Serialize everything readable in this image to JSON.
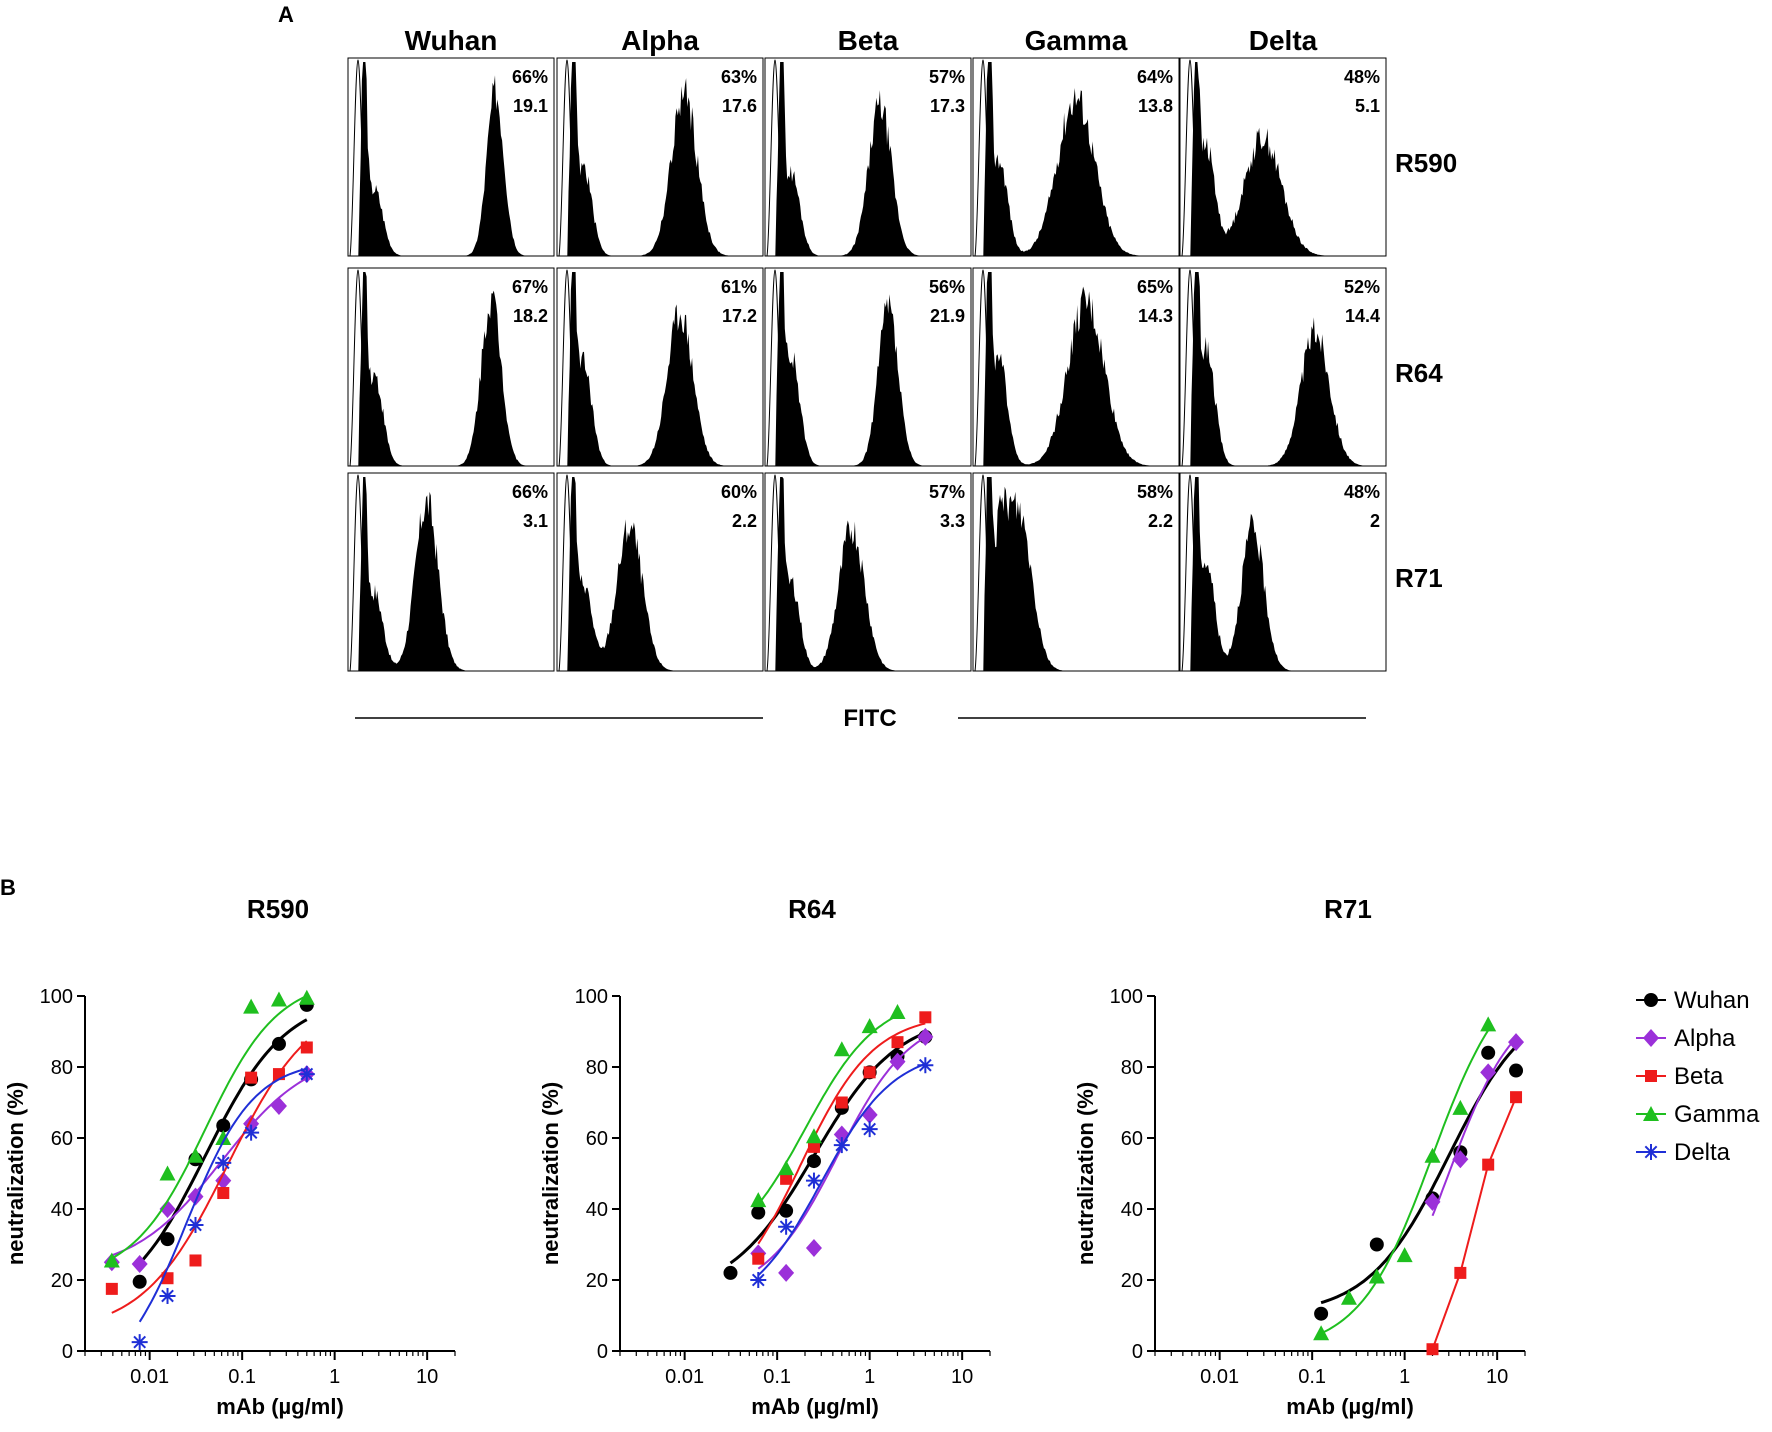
{
  "colors": {
    "Wuhan": "#000000",
    "Alpha": "#9b30d9",
    "Beta": "#ee1c1c",
    "Gamma": "#1fbf1f",
    "Delta": "#1f2fd6"
  },
  "panel_a": {
    "label": "A",
    "xlabel": "FITC",
    "variants": [
      "Wuhan",
      "Alpha",
      "Beta",
      "Gamma",
      "Delta"
    ],
    "antibodies": [
      "R590",
      "R64",
      "R71"
    ],
    "histograms": [
      [
        {
          "pct": "66%",
          "mfi": "19.1",
          "peak": 0.72,
          "h": 0.83,
          "w": 0.06,
          "n": 0.34
        },
        {
          "pct": "63%",
          "mfi": "17.6",
          "peak": 0.62,
          "h": 0.82,
          "w": 0.09,
          "n": 0.45
        },
        {
          "pct": "57%",
          "mfi": "17.3",
          "peak": 0.56,
          "h": 0.76,
          "w": 0.08,
          "n": 0.42
        },
        {
          "pct": "64%",
          "mfi": "13.8",
          "peak": 0.5,
          "h": 0.8,
          "w": 0.13,
          "n": 0.48
        },
        {
          "pct": "48%",
          "mfi": "5.1",
          "peak": 0.4,
          "h": 0.6,
          "w": 0.13,
          "n": 0.55
        }
      ],
      [
        {
          "pct": "67%",
          "mfi": "18.2",
          "peak": 0.7,
          "h": 0.85,
          "w": 0.07,
          "n": 0.46
        },
        {
          "pct": "61%",
          "mfi": "17.2",
          "peak": 0.6,
          "h": 0.77,
          "w": 0.09,
          "n": 0.52
        },
        {
          "pct": "56%",
          "mfi": "21.9",
          "peak": 0.6,
          "h": 0.8,
          "w": 0.07,
          "n": 0.55
        },
        {
          "pct": "65%",
          "mfi": "14.3",
          "peak": 0.55,
          "h": 0.82,
          "w": 0.13,
          "n": 0.52
        },
        {
          "pct": "52%",
          "mfi": "14.4",
          "peak": 0.66,
          "h": 0.68,
          "w": 0.1,
          "n": 0.6
        }
      ],
      [
        {
          "pct": "66%",
          "mfi": "3.1",
          "peak": 0.38,
          "h": 0.85,
          "w": 0.08,
          "n": 0.4
        },
        {
          "pct": "60%",
          "mfi": "2.2",
          "peak": 0.35,
          "h": 0.73,
          "w": 0.09,
          "n": 0.45
        },
        {
          "pct": "57%",
          "mfi": "3.3",
          "peak": 0.42,
          "h": 0.72,
          "w": 0.09,
          "n": 0.45
        },
        {
          "pct": "58%",
          "mfi": "2.2",
          "peak": 0.22,
          "h": 0.78,
          "w": 0.09,
          "n": 0.55
        },
        {
          "pct": "48%",
          "mfi": "2",
          "peak": 0.35,
          "h": 0.72,
          "w": 0.08,
          "n": 0.55
        }
      ]
    ]
  },
  "panel_b": {
    "label": "B",
    "legend": [
      "Wuhan",
      "Alpha",
      "Beta",
      "Gamma",
      "Delta"
    ],
    "xticks": [
      "0.01",
      "0.1",
      "1",
      "10"
    ],
    "yticks": [
      "0",
      "20",
      "40",
      "60",
      "80",
      "100"
    ]
  },
  "chart_data": [
    {
      "type": "scatter",
      "title": "R590",
      "xlabel": "mAb (µg/ml)",
      "ylabel": "neutralization (%)",
      "xscale": "log",
      "xlim": [
        0.002,
        20
      ],
      "ylim": [
        0,
        100
      ],
      "series": [
        {
          "name": "Wuhan",
          "x": [
            0.0078,
            0.0156,
            0.0313,
            0.0625,
            0.125,
            0.25,
            0.5
          ],
          "y": [
            19.5,
            31.5,
            54,
            63.5,
            76.5,
            86.5,
            97.5
          ],
          "fit": {
            "bottom": 10,
            "top": 100,
            "ec50": 0.04,
            "hill": 1.0
          }
        },
        {
          "name": "Alpha",
          "x": [
            0.0039,
            0.0078,
            0.0156,
            0.0313,
            0.0625,
            0.125,
            0.25,
            0.5
          ],
          "y": [
            25,
            24.5,
            40,
            43.5,
            48,
            64,
            69,
            78
          ],
          "fit": {
            "bottom": 22,
            "top": 85,
            "ec50": 0.06,
            "hill": 0.9
          }
        },
        {
          "name": "Beta",
          "x": [
            0.0039,
            0.0156,
            0.0313,
            0.0625,
            0.125,
            0.25,
            0.5
          ],
          "y": [
            17.5,
            20.5,
            25.5,
            44.5,
            77,
            78,
            85.5
          ],
          "fit": {
            "bottom": 5,
            "top": 100,
            "ec50": 0.07,
            "hill": 0.95
          }
        },
        {
          "name": "Gamma",
          "x": [
            0.0039,
            0.0156,
            0.0313,
            0.0625,
            0.125,
            0.25,
            0.5
          ],
          "y": [
            25.5,
            50,
            55,
            60,
            97,
            99,
            99.5
          ],
          "fit": {
            "bottom": 20,
            "top": 105,
            "ec50": 0.04,
            "hill": 1.1
          }
        },
        {
          "name": "Delta",
          "x": [
            0.0078,
            0.0156,
            0.0313,
            0.0625,
            0.125,
            0.5
          ],
          "y": [
            2.5,
            15.5,
            35.5,
            53,
            61.5,
            78
          ],
          "fit": {
            "bottom": -10,
            "top": 82,
            "ec50": 0.025,
            "hill": 1.2
          }
        }
      ]
    },
    {
      "type": "scatter",
      "title": "R64",
      "xlabel": "mAb (µg/ml)",
      "ylabel": "neutralization (%)",
      "xscale": "log",
      "xlim": [
        0.002,
        20
      ],
      "ylim": [
        0,
        100
      ],
      "series": [
        {
          "name": "Wuhan",
          "x": [
            0.0313,
            0.0625,
            0.125,
            0.25,
            0.5,
            1,
            2,
            4
          ],
          "y": [
            22,
            39,
            39.5,
            53.5,
            68.5,
            78.5,
            83,
            88.5
          ],
          "fit": {
            "bottom": 15,
            "top": 95,
            "ec50": 0.25,
            "hill": 0.95
          }
        },
        {
          "name": "Alpha",
          "x": [
            0.0625,
            0.125,
            0.25,
            0.5,
            1,
            2,
            4
          ],
          "y": [
            27.5,
            22,
            29,
            61,
            66.5,
            81.5,
            88.5
          ],
          "fit": {
            "bottom": 15,
            "top": 95,
            "ec50": 0.45,
            "hill": 1.1
          }
        },
        {
          "name": "Beta",
          "x": [
            0.0625,
            0.125,
            0.25,
            0.5,
            1,
            2,
            4
          ],
          "y": [
            26,
            48.5,
            57.5,
            70,
            78.5,
            87,
            94
          ],
          "fit": {
            "bottom": 10,
            "top": 95,
            "ec50": 0.18,
            "hill": 1.1
          }
        },
        {
          "name": "Gamma",
          "x": [
            0.0625,
            0.125,
            0.25,
            0.5,
            1,
            2
          ],
          "y": [
            42.5,
            51.5,
            60.5,
            85,
            91.5,
            95.5
          ],
          "fit": {
            "bottom": 25,
            "top": 100,
            "ec50": 0.2,
            "hill": 1.1
          }
        },
        {
          "name": "Delta",
          "x": [
            0.0625,
            0.125,
            0.25,
            0.5,
            1,
            4
          ],
          "y": [
            20,
            35,
            48,
            58,
            62.5,
            80.5
          ],
          "fit": {
            "bottom": 10,
            "top": 85,
            "ec50": 0.3,
            "hill": 1.1
          }
        }
      ]
    },
    {
      "type": "scatter",
      "title": "R71",
      "xlabel": "mAb (µg/ml)",
      "ylabel": "neutralization (%)",
      "xscale": "log",
      "xlim": [
        0.002,
        20
      ],
      "ylim": [
        0,
        100
      ],
      "series": [
        {
          "name": "Wuhan",
          "x": [
            0.125,
            0.5,
            2,
            4,
            8,
            16
          ],
          "y": [
            10.5,
            30,
            43,
            56,
            84,
            79
          ],
          "fit": {
            "bottom": 10,
            "top": 100,
            "ec50": 3,
            "hill": 1.0
          }
        },
        {
          "name": "Alpha",
          "x": [
            2,
            4,
            8,
            16
          ],
          "y": [
            42,
            54,
            78.5,
            87
          ],
          "fit": {
            "bottom": 0,
            "top": 100,
            "ec50": 3,
            "hill": 1.2
          }
        },
        {
          "name": "Beta",
          "x": [
            2,
            4,
            8,
            16
          ],
          "y": [
            0.5,
            22,
            52.5,
            71.5
          ],
          "fit": null
        },
        {
          "name": "Gamma",
          "x": [
            0.125,
            0.25,
            0.5,
            1,
            2,
            4,
            8
          ],
          "y": [
            5,
            15,
            21,
            27,
            55,
            68.5,
            92
          ],
          "fit": {
            "bottom": 0,
            "top": 110,
            "ec50": 2,
            "hill": 1.1
          }
        },
        {
          "name": "Delta",
          "x": [],
          "y": [],
          "fit": null
        }
      ]
    }
  ]
}
